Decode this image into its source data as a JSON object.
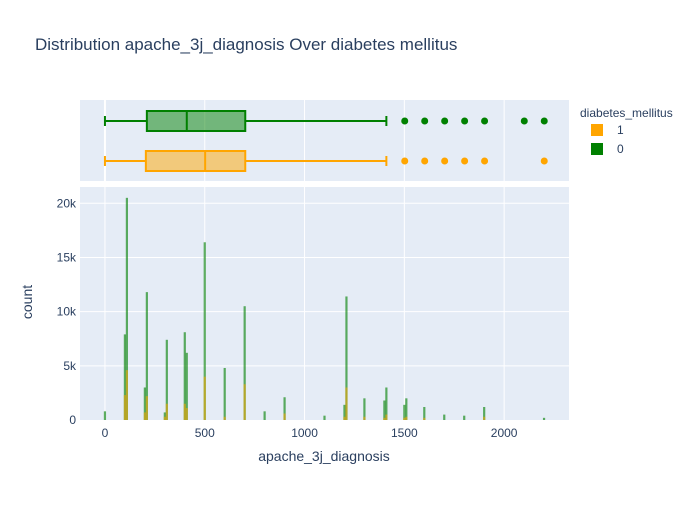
{
  "chart_data": {
    "type": "bar",
    "subtype": "histogram with marginal box plots (overlay)",
    "title": "Distribution apache_3j_diagnosis Over diabetes mellitus",
    "xlabel": "apache_3j_diagnosis",
    "ylabel": "count",
    "xlim": [
      -125,
      2325
    ],
    "ylim": [
      0,
      21500
    ],
    "x_ticks": [
      0,
      500,
      1000,
      1500,
      2000
    ],
    "x_tick_labels": [
      "0",
      "500",
      "1000",
      "1500",
      "2000"
    ],
    "y_ticks": [
      0,
      5000,
      10000,
      15000,
      20000
    ],
    "y_tick_labels": [
      "0",
      "5k",
      "10k",
      "15k",
      "20k"
    ],
    "grid": true,
    "legend": {
      "title": "diabetes_mellitus",
      "position": "top-right",
      "entries": [
        {
          "label": "1",
          "color": "#FFA500"
        },
        {
          "label": "0",
          "color": "#008000"
        }
      ]
    },
    "series": [
      {
        "name": "0",
        "color": "#008000",
        "bins": [
          {
            "x": 0,
            "count": 800
          },
          {
            "x": 100,
            "count": 7900
          },
          {
            "x": 110,
            "count": 20500
          },
          {
            "x": 200,
            "count": 3000
          },
          {
            "x": 210,
            "count": 11800
          },
          {
            "x": 300,
            "count": 700
          },
          {
            "x": 310,
            "count": 7400
          },
          {
            "x": 400,
            "count": 8100
          },
          {
            "x": 410,
            "count": 6200
          },
          {
            "x": 500,
            "count": 16400
          },
          {
            "x": 600,
            "count": 4800
          },
          {
            "x": 700,
            "count": 10500
          },
          {
            "x": 800,
            "count": 800
          },
          {
            "x": 900,
            "count": 2100
          },
          {
            "x": 1100,
            "count": 400
          },
          {
            "x": 1200,
            "count": 1400
          },
          {
            "x": 1210,
            "count": 11400
          },
          {
            "x": 1300,
            "count": 2000
          },
          {
            "x": 1400,
            "count": 1800
          },
          {
            "x": 1410,
            "count": 3000
          },
          {
            "x": 1500,
            "count": 1400
          },
          {
            "x": 1510,
            "count": 2000
          },
          {
            "x": 1600,
            "count": 1200
          },
          {
            "x": 1700,
            "count": 500
          },
          {
            "x": 1800,
            "count": 400
          },
          {
            "x": 1900,
            "count": 1200
          },
          {
            "x": 2200,
            "count": 200
          }
        ],
        "box": {
          "min": 0,
          "q1": 210,
          "median": 410,
          "q3": 703,
          "max": 1410,
          "outliers": [
            1502,
            1602,
            1702,
            1802,
            1902,
            2101,
            2201
          ]
        }
      },
      {
        "name": "1",
        "color": "#FFA500",
        "bins": [
          {
            "x": 100,
            "count": 2300
          },
          {
            "x": 110,
            "count": 4600
          },
          {
            "x": 200,
            "count": 700
          },
          {
            "x": 210,
            "count": 2200
          },
          {
            "x": 300,
            "count": 300
          },
          {
            "x": 310,
            "count": 1500
          },
          {
            "x": 400,
            "count": 1500
          },
          {
            "x": 410,
            "count": 1100
          },
          {
            "x": 500,
            "count": 4000
          },
          {
            "x": 600,
            "count": 300
          },
          {
            "x": 700,
            "count": 3300
          },
          {
            "x": 900,
            "count": 600
          },
          {
            "x": 1200,
            "count": 300
          },
          {
            "x": 1210,
            "count": 3000
          },
          {
            "x": 1300,
            "count": 300
          },
          {
            "x": 1400,
            "count": 200
          },
          {
            "x": 1410,
            "count": 500
          },
          {
            "x": 1500,
            "count": 200
          },
          {
            "x": 1510,
            "count": 300
          },
          {
            "x": 1600,
            "count": 200
          },
          {
            "x": 1900,
            "count": 300
          }
        ],
        "box": {
          "min": 0,
          "q1": 205,
          "median": 502,
          "q3": 703,
          "max": 1410,
          "outliers": [
            1502,
            1602,
            1702,
            1802,
            1902,
            2201
          ]
        }
      }
    ]
  }
}
